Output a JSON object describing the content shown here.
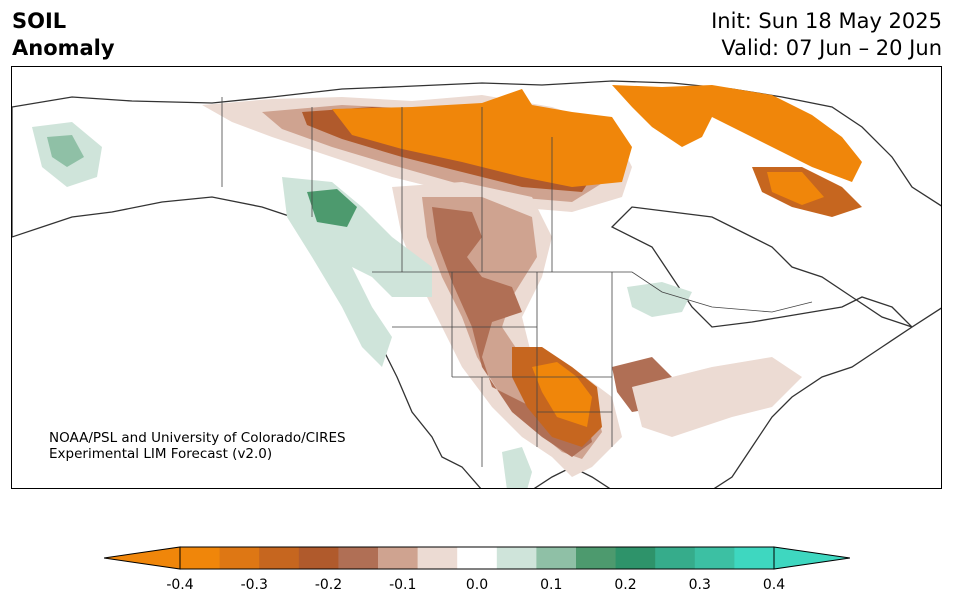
{
  "title": {
    "left_line1": "SOIL",
    "left_line2": "Anomaly",
    "right_line1": "Init: Sun 18 May 2025",
    "right_line2": "Valid: 07 Jun – 20 Jun"
  },
  "credit": {
    "line1": "NOAA/PSL and University of Colorado/CIRES",
    "line2": "Experimental LIM Forecast (v2.0)"
  },
  "colorbar": {
    "ticks": [
      "-0.4",
      "-0.3",
      "-0.2",
      "-0.1",
      "0.0",
      "0.1",
      "0.2",
      "0.3",
      "0.4"
    ],
    "levels": [
      {
        "range": "<-0.4",
        "color": "#f0860a"
      },
      {
        "range": "-0.4 to -0.35",
        "color": "#f0860a"
      },
      {
        "range": "-0.35 to -0.3",
        "color": "#de7714"
      },
      {
        "range": "-0.3 to -0.25",
        "color": "#c6661f"
      },
      {
        "range": "-0.25 to -0.2",
        "color": "#b05a2c"
      },
      {
        "range": "-0.2 to -0.15",
        "color": "#b06f55"
      },
      {
        "range": "-0.15 to -0.1",
        "color": "#cfa390"
      },
      {
        "range": "-0.1 to -0.05",
        "color": "#ecdbd3"
      },
      {
        "range": "-0.05 to 0.05",
        "color": "#ffffff"
      },
      {
        "range": "0.05 to 0.1",
        "color": "#cfe4da"
      },
      {
        "range": "0.1 to 0.15",
        "color": "#8fc0a6"
      },
      {
        "range": "0.15 to 0.2",
        "color": "#4d9a6e"
      },
      {
        "range": "0.2 to 0.25",
        "color": "#2e936a"
      },
      {
        "range": "0.25 to 0.3",
        "color": "#36ac8b"
      },
      {
        "range": "0.3 to 0.35",
        "color": "#3cc0a3"
      },
      {
        "range": "0.35 to 0.4",
        "color": "#3ed7c0"
      },
      {
        "range": ">0.4",
        "color": "#3ed7c0"
      }
    ]
  }
}
